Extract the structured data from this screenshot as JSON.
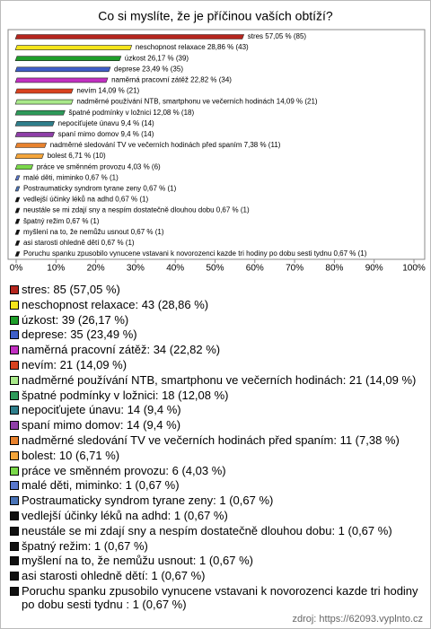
{
  "chart_data": {
    "type": "bar",
    "orientation": "horizontal",
    "title": "Co si myslíte, že je příčinou vaších obtíží?",
    "categories": [
      "stres",
      "neschopnost relaxace",
      "úzkost",
      "deprese",
      "naměrná pracovní zátěž",
      "nevím",
      "nadměrné používání NTB, smartphonu ve večerních hodinách",
      "špatné podmínky v ložnici",
      "nepociťujete únavu",
      "spaní mimo domov",
      "nadměrné sledování TV ve večerních hodinách před spaním",
      "bolest",
      "práce ve směnném provozu",
      "malé děti, miminko",
      "Postraumaticky syndrom tyrane zeny",
      "vedlejší účinky léků na adhd",
      "neustále se mi zdají sny a nespím dostatečně dlouhou dobu",
      "špatný režim",
      "myšlení na to, že nemůžu usnout",
      "asi starosti ohledně dětí",
      "Poruchu spanku zpusobilo vynucene vstavani k novorozenci kazde tri hodiny po dobu sesti tydnu"
    ],
    "values": [
      57.05,
      28.86,
      26.17,
      23.49,
      22.82,
      14.09,
      14.09,
      12.08,
      9.4,
      9.4,
      7.38,
      6.71,
      4.03,
      0.67,
      0.67,
      0.67,
      0.67,
      0.67,
      0.67,
      0.67,
      0.67
    ],
    "value_labels": [
      "stres 57,05 % (85)",
      "neschopnost relaxace 28,86 % (43)",
      "úzkost 26,17 % (39)",
      "deprese 23,49 % (35)",
      "naměrná pracovní zátěž 22,82 % (34)",
      "nevím 14,09 % (21)",
      "nadměrné používání NTB, smartphonu ve večerních hodinách 14,09 % (21)",
      "špatné podmínky v ložnici 12,08 % (18)",
      "nepociťujete únavu 9,4 % (14)",
      "spaní mimo domov 9,4 % (14)",
      "nadměrné sledování TV ve večerních hodinách před spaním 7,38 % (11)",
      "bolest 6,71 % (10)",
      "práce ve směnném provozu 4,03 % (6)",
      "malé děti, miminko 0,67 % (1)",
      "Postraumaticky syndrom tyrane zeny 0,67 % (1)",
      "vedlejší účinky léků na adhd 0,67 % (1)",
      "neustále se mi zdají sny a nespím dostatečně dlouhou dobu 0,67 % (1)",
      "špatný režim 0,67 % (1)",
      "myšlení na to, že nemůžu usnout 0,67 % (1)",
      "asi starosti ohledně dětí 0,67 % (1)",
      "Poruchu spanku zpusobilo vynucene vstavani k novorozenci kazde tri hodiny po dobu sesti tydnu  0,67 % (1)"
    ],
    "legend_labels": [
      "stres: 85 (57,05 %)",
      "neschopnost relaxace: 43 (28,86 %)",
      "úzkost: 39 (26,17 %)",
      "deprese: 35 (23,49 %)",
      "naměrná pracovní zátěž: 34 (22,82 %)",
      "nevím: 21 (14,09 %)",
      "nadměrné používání NTB, smartphonu ve večerních hodinách: 21 (14,09 %)",
      "špatné podmínky v ložnici: 18 (12,08 %)",
      "nepociťujete únavu: 14 (9,4 %)",
      "spaní mimo domov: 14 (9,4 %)",
      "nadměrné sledování TV ve večerních hodinách před spaním: 11 (7,38 %)",
      "bolest: 10 (6,71 %)",
      "práce ve směnném provozu: 6 (4,03 %)",
      "malé děti, miminko: 1 (0,67 %)",
      "Postraumaticky syndrom tyrane zeny: 1 (0,67 %)",
      "vedlejší účinky léků na adhd: 1 (0,67 %)",
      "neustále se mi zdají sny a nespím dostatečně dlouhou dobu: 1 (0,67 %)",
      "špatný režim: 1 (0,67 %)",
      "myšlení na to, že nemůžu usnout: 1 (0,67 %)",
      "asi starosti ohledně dětí: 1 (0,67 %)",
      "Poruchu spanku zpusobilo vynucene vstavani k novorozenci kazde tri hodiny po dobu sesti tydnu : 1 (0,67 %)"
    ],
    "colors": [
      "#b5261e",
      "#f5e51b",
      "#1e9e2a",
      "#3f5fc8",
      "#c22fc2",
      "#d8421f",
      "#a9e98a",
      "#2e9a5a",
      "#2f7f8c",
      "#8f3fa8",
      "#e8822e",
      "#f4a53a",
      "#7ad84a",
      "#5a78cc",
      "#4a74b8",
      "#111111",
      "#111111",
      "#111111",
      "#111111",
      "#111111",
      "#111111"
    ],
    "xlim": [
      0,
      100
    ],
    "xticks": [
      {
        "value": 0,
        "label": "0%"
      },
      {
        "value": 10,
        "label": "10%"
      },
      {
        "value": 20,
        "label": "20%"
      },
      {
        "value": 30,
        "label": "30%"
      },
      {
        "value": 40,
        "label": "40%"
      },
      {
        "value": 50,
        "label": "50%"
      },
      {
        "value": 60,
        "label": "60%"
      },
      {
        "value": 70,
        "label": "70%"
      },
      {
        "value": 80,
        "label": "80%"
      },
      {
        "value": 90,
        "label": "90%"
      },
      {
        "value": 100,
        "label": "100%"
      }
    ],
    "source": "zdroj: https://62093.vyplnto.cz"
  }
}
